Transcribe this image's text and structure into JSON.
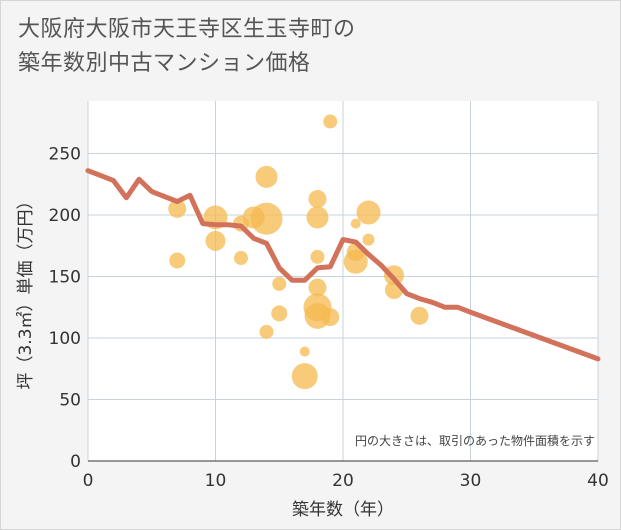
{
  "title_lines": [
    "大阪府大阪市天王寺区生玉寺町の",
    "築年数別中古マンション価格"
  ],
  "chart_data": {
    "type": "scatter",
    "xlabel": "築年数（年）",
    "ylabel": "坪（3.3㎡）単価（万円）",
    "xlim": [
      0,
      40
    ],
    "ylim": [
      0,
      280
    ],
    "xticks": [
      0,
      10,
      20,
      30,
      40
    ],
    "yticks": [
      0,
      50,
      100,
      150,
      200,
      250
    ],
    "grid": true,
    "note": "円の大きさは、取引のあった物件面積を示す",
    "colors": {
      "bubble": "#f5b94f",
      "line": "#d2725a",
      "grid": "#c8d3de",
      "plot_bg": "#ffffff"
    },
    "bubbles": [
      {
        "x": 7,
        "y": 205,
        "size": 9
      },
      {
        "x": 7,
        "y": 163,
        "size": 8
      },
      {
        "x": 10,
        "y": 198,
        "size": 12
      },
      {
        "x": 10,
        "y": 179,
        "size": 10
      },
      {
        "x": 12,
        "y": 193,
        "size": 8
      },
      {
        "x": 12,
        "y": 165,
        "size": 7
      },
      {
        "x": 13,
        "y": 198,
        "size": 11
      },
      {
        "x": 14,
        "y": 231,
        "size": 11
      },
      {
        "x": 14,
        "y": 197,
        "size": 16
      },
      {
        "x": 14,
        "y": 105,
        "size": 7
      },
      {
        "x": 15,
        "y": 144,
        "size": 7
      },
      {
        "x": 15,
        "y": 120,
        "size": 8
      },
      {
        "x": 17,
        "y": 89,
        "size": 5
      },
      {
        "x": 17,
        "y": 69,
        "size": 13
      },
      {
        "x": 18,
        "y": 213,
        "size": 9
      },
      {
        "x": 18,
        "y": 198,
        "size": 11
      },
      {
        "x": 18,
        "y": 166,
        "size": 7
      },
      {
        "x": 18,
        "y": 141,
        "size": 9
      },
      {
        "x": 18,
        "y": 125,
        "size": 14
      },
      {
        "x": 18,
        "y": 118,
        "size": 13
      },
      {
        "x": 19,
        "y": 276,
        "size": 7
      },
      {
        "x": 19,
        "y": 117,
        "size": 9
      },
      {
        "x": 21,
        "y": 193,
        "size": 5
      },
      {
        "x": 21,
        "y": 170,
        "size": 9
      },
      {
        "x": 21,
        "y": 162,
        "size": 12
      },
      {
        "x": 22,
        "y": 202,
        "size": 12
      },
      {
        "x": 22,
        "y": 180,
        "size": 6
      },
      {
        "x": 24,
        "y": 151,
        "size": 10
      },
      {
        "x": 24,
        "y": 139,
        "size": 9
      },
      {
        "x": 26,
        "y": 118,
        "size": 9
      }
    ],
    "trend": {
      "x": [
        0,
        1,
        2,
        3,
        4,
        5,
        6,
        7,
        8,
        9,
        10,
        11,
        12,
        13,
        14,
        15,
        16,
        17,
        18,
        19,
        20,
        21,
        22,
        23,
        24,
        25,
        26,
        27,
        28,
        29,
        30,
        40
      ],
      "y": [
        236,
        232,
        228,
        214,
        229,
        219,
        215,
        211,
        216,
        193,
        192,
        192,
        191,
        181,
        177,
        157,
        147,
        147,
        157,
        158,
        180,
        178,
        168,
        159,
        148,
        136,
        132,
        129,
        125,
        125,
        121,
        83
      ]
    }
  }
}
